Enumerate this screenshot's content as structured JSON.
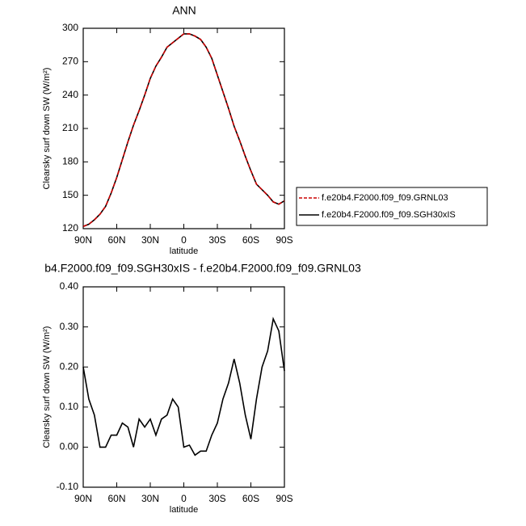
{
  "chart_data": [
    {
      "type": "line",
      "title": "ANN",
      "xlabel": "latitude",
      "ylabel": "Clearsky surf down SW (W/m²)",
      "x": [
        90,
        85,
        80,
        75,
        70,
        65,
        60,
        55,
        50,
        45,
        40,
        35,
        30,
        25,
        20,
        15,
        10,
        5,
        0,
        -5,
        -10,
        -15,
        -20,
        -25,
        -30,
        -35,
        -40,
        -45,
        -50,
        -55,
        -60,
        -65,
        -70,
        -75,
        -80,
        -85,
        -90
      ],
      "series": [
        {
          "name": "f.e20b4.F2000.f09_f09.GRNL03",
          "color": "#cc0000",
          "dashed": true,
          "values": [
            122,
            124,
            128,
            133,
            140,
            152,
            166,
            182,
            198,
            213,
            226,
            240,
            255,
            266,
            274,
            283,
            287,
            291,
            295,
            295,
            293,
            290,
            283,
            273,
            258,
            243,
            228,
            212,
            199,
            185,
            172,
            160,
            155,
            150,
            144,
            142,
            145
          ]
        },
        {
          "name": "f.e20b4.F2000.f09_f09.SGH30xIS",
          "color": "#000000",
          "dashed": false,
          "values": [
            122,
            124,
            128,
            133,
            140,
            152,
            166,
            182,
            198,
            213,
            226,
            240,
            255,
            266,
            274,
            283,
            287,
            291,
            295,
            295,
            293,
            290,
            283,
            273,
            258,
            243,
            228,
            212,
            199,
            185,
            172,
            160,
            155,
            150,
            144,
            142,
            145
          ]
        }
      ],
      "xlim": [
        90,
        -90
      ],
      "xticks": [
        {
          "value": 90,
          "label": "90N"
        },
        {
          "value": 60,
          "label": "60N"
        },
        {
          "value": 30,
          "label": "30N"
        },
        0,
        {
          "value": -30,
          "label": "30S"
        },
        {
          "value": -60,
          "label": "60S"
        },
        {
          "value": -90,
          "label": "90S"
        }
      ],
      "ylim": [
        120,
        300
      ],
      "yticks": [
        120,
        150,
        180,
        210,
        240,
        270,
        300
      ],
      "legend": "right"
    },
    {
      "type": "line",
      "title": "b4.F2000.f09_f09.SGH30xIS - f.e20b4.F2000.f09_f09.GRNL03",
      "xlabel": "latitude",
      "ylabel": "Clearsky surf down SW (W/m²)",
      "x": [
        90,
        85,
        80,
        75,
        70,
        65,
        60,
        55,
        50,
        45,
        40,
        35,
        30,
        25,
        20,
        15,
        10,
        5,
        0,
        -5,
        -10,
        -15,
        -20,
        -25,
        -30,
        -35,
        -40,
        -45,
        -50,
        -55,
        -60,
        -65,
        -70,
        -75,
        -80,
        -85,
        -90
      ],
      "series": [
        {
          "color": "#000000",
          "dashed": false,
          "values": [
            0.2,
            0.12,
            0.08,
            0.0,
            0.0,
            0.03,
            0.03,
            0.06,
            0.05,
            0.0,
            0.07,
            0.05,
            0.07,
            0.03,
            0.07,
            0.08,
            0.12,
            0.1,
            0.0,
            0.005,
            -0.02,
            -0.01,
            -0.01,
            0.03,
            0.06,
            0.12,
            0.16,
            0.22,
            0.16,
            0.08,
            0.02,
            0.12,
            0.2,
            0.24,
            0.32,
            0.29,
            0.19
          ]
        }
      ],
      "xlim": [
        90,
        -90
      ],
      "xticks": [
        {
          "value": 90,
          "label": "90N"
        },
        {
          "value": 60,
          "label": "60N"
        },
        {
          "value": 30,
          "label": "30N"
        },
        0,
        {
          "value": -30,
          "label": "30S"
        },
        {
          "value": -60,
          "label": "60S"
        },
        {
          "value": -90,
          "label": "90S"
        }
      ],
      "ylim": [
        -0.1,
        0.4
      ],
      "yticks": [
        {
          "value": -0.1,
          "label": "-0.10"
        },
        {
          "value": 0.0,
          "label": "0.00"
        },
        {
          "value": 0.1,
          "label": "0.10"
        },
        {
          "value": 0.2,
          "label": "0.20"
        },
        {
          "value": 0.3,
          "label": "0.30"
        },
        {
          "value": 0.4,
          "label": "0.40"
        }
      ]
    }
  ]
}
